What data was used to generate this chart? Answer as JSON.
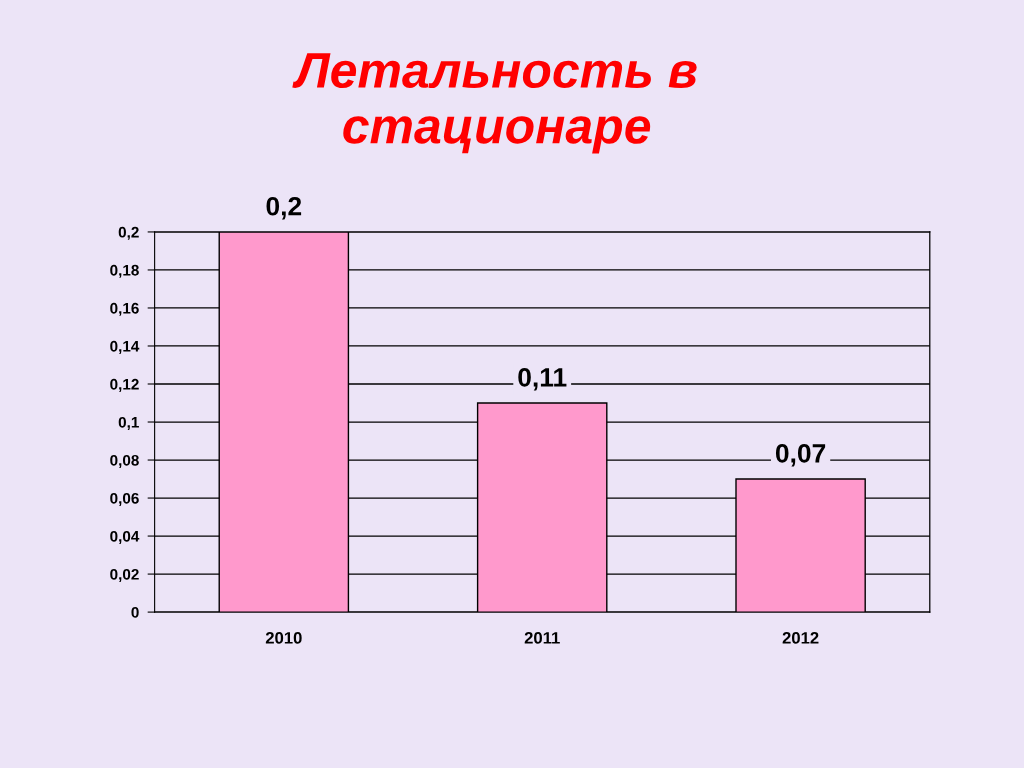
{
  "chart_data": {
    "type": "bar",
    "title": "Летальность в\nстационаре",
    "categories": [
      "2010",
      "2011",
      "2012"
    ],
    "values": [
      0.2,
      0.11,
      0.07
    ],
    "color": "#ff99cc",
    "value_labels": [
      "0,2",
      "0,11",
      "0,07"
    ],
    "ylim": [
      0,
      0.2
    ],
    "yticks": [
      0,
      {
        "value": 0.02,
        "label": "0,02"
      },
      {
        "value": 0.04,
        "label": "0,04"
      },
      {
        "value": 0.06,
        "label": "0,06"
      },
      {
        "value": 0.08,
        "label": "0,08"
      },
      {
        "value": 0.1,
        "label": "0,1"
      },
      {
        "value": 0.12,
        "label": "0,12"
      },
      {
        "value": 0.14,
        "label": "0,14"
      },
      {
        "value": 0.16,
        "label": "0,16"
      },
      {
        "value": 0.18,
        "label": "0,18"
      },
      {
        "value": 0.2,
        "label": "0,2"
      }
    ],
    "grid": "y"
  }
}
